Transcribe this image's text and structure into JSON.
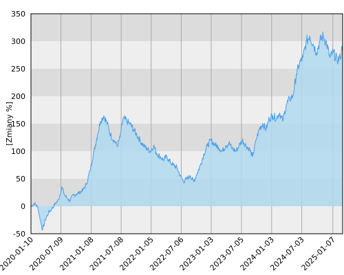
{
  "chart_data": {
    "type": "area",
    "title": "",
    "ylabel": "[Zmiany %]",
    "xlabel": "",
    "ylim": [
      -50,
      350
    ],
    "xlim": [
      "2020-01-10",
      "2025-03-07"
    ],
    "y_ticks": [
      "-50",
      "0",
      "50",
      "100",
      "150",
      "200",
      "250",
      "300",
      "350"
    ],
    "x_ticks": [
      {
        "label": "2020-01-10",
        "date": "2020-01-10"
      },
      {
        "label": "2020-07-09",
        "date": "2020-07-09"
      },
      {
        "label": "2021-01-08",
        "date": "2021-01-08"
      },
      {
        "label": "2021-07-08",
        "date": "2021-07-08"
      },
      {
        "label": "2022-01-05",
        "date": "2022-01-05"
      },
      {
        "label": "2022-07-06",
        "date": "2022-07-06"
      },
      {
        "label": "2023-01-03",
        "date": "2023-01-03"
      },
      {
        "label": "2023-07-05",
        "date": "2023-07-05"
      },
      {
        "label": "2024-01-03",
        "date": "2024-01-03"
      },
      {
        "label": "2024-07-03",
        "date": "2024-07-03"
      },
      {
        "label": "2025-01-07",
        "date": "2025-01-07"
      }
    ],
    "grid": true,
    "band_colors": [
      "#dcdcdc",
      "#eeeeee"
    ],
    "line_color": "#4a9eea",
    "fill_color": "#b0d9ee",
    "series": [
      {
        "x": [
          "2020-01-10",
          "2020-02-01",
          "2020-02-20",
          "2020-03-10",
          "2020-03-20",
          "2020-04-05",
          "2020-04-25",
          "2020-05-15",
          "2020-06-05",
          "2020-06-25",
          "2020-07-15",
          "2020-08-01",
          "2020-08-15",
          "2020-09-01",
          "2020-09-20",
          "2020-10-10",
          "2020-10-30",
          "2020-11-20",
          "2020-12-10",
          "2021-01-01",
          "2021-01-25",
          "2021-02-15",
          "2021-03-05",
          "2021-03-25",
          "2021-04-15",
          "2021-05-05",
          "2021-05-25",
          "2021-06-15",
          "2021-07-01",
          "2021-07-20",
          "2021-08-10",
          "2021-08-30",
          "2021-09-20",
          "2021-10-10",
          "2021-10-30",
          "2021-11-20",
          "2021-12-10",
          "2022-01-01",
          "2022-01-20",
          "2022-02-10",
          "2022-03-01",
          "2022-03-20",
          "2022-04-10",
          "2022-05-01",
          "2022-05-20",
          "2022-06-10",
          "2022-07-01",
          "2022-07-20",
          "2022-08-10",
          "2022-08-30",
          "2022-09-20",
          "2022-10-10",
          "2022-10-30",
          "2022-11-20",
          "2022-12-10",
          "2023-01-01",
          "2023-01-25",
          "2023-02-15",
          "2023-03-10",
          "2023-04-01",
          "2023-04-20",
          "2023-05-10",
          "2023-06-01",
          "2023-06-20",
          "2023-07-10",
          "2023-08-01",
          "2023-08-20",
          "2023-09-10",
          "2023-10-01",
          "2023-10-20",
          "2023-11-10",
          "2023-12-01",
          "2023-12-20",
          "2024-01-10",
          "2024-02-01",
          "2024-02-20",
          "2024-03-10",
          "2024-04-01",
          "2024-04-20",
          "2024-05-10",
          "2024-06-01",
          "2024-06-20",
          "2024-07-10",
          "2024-08-01",
          "2024-08-20",
          "2024-09-10",
          "2024-10-01",
          "2024-10-20",
          "2024-11-10",
          "2024-12-01",
          "2024-12-20",
          "2025-01-10",
          "2025-02-01",
          "2025-02-20",
          "2025-03-07"
        ],
        "values": [
          0,
          5,
          -2,
          -30,
          -43,
          -25,
          -12,
          -5,
          5,
          12,
          35,
          20,
          15,
          10,
          20,
          22,
          25,
          30,
          40,
          65,
          100,
          130,
          155,
          165,
          150,
          130,
          120,
          110,
          125,
          160,
          155,
          150,
          140,
          130,
          120,
          110,
          105,
          100,
          110,
          95,
          90,
          85,
          90,
          80,
          75,
          70,
          55,
          45,
          50,
          55,
          45,
          60,
          75,
          95,
          110,
          120,
          112,
          108,
          100,
          110,
          115,
          105,
          100,
          110,
          120,
          110,
          105,
          90,
          120,
          140,
          150,
          140,
          160,
          165,
          160,
          170,
          155,
          185,
          195,
          200,
          240,
          260,
          270,
          300,
          310,
          295,
          280,
          300,
          310,
          295,
          270,
          280,
          265,
          270,
          295
        ]
      }
    ]
  }
}
